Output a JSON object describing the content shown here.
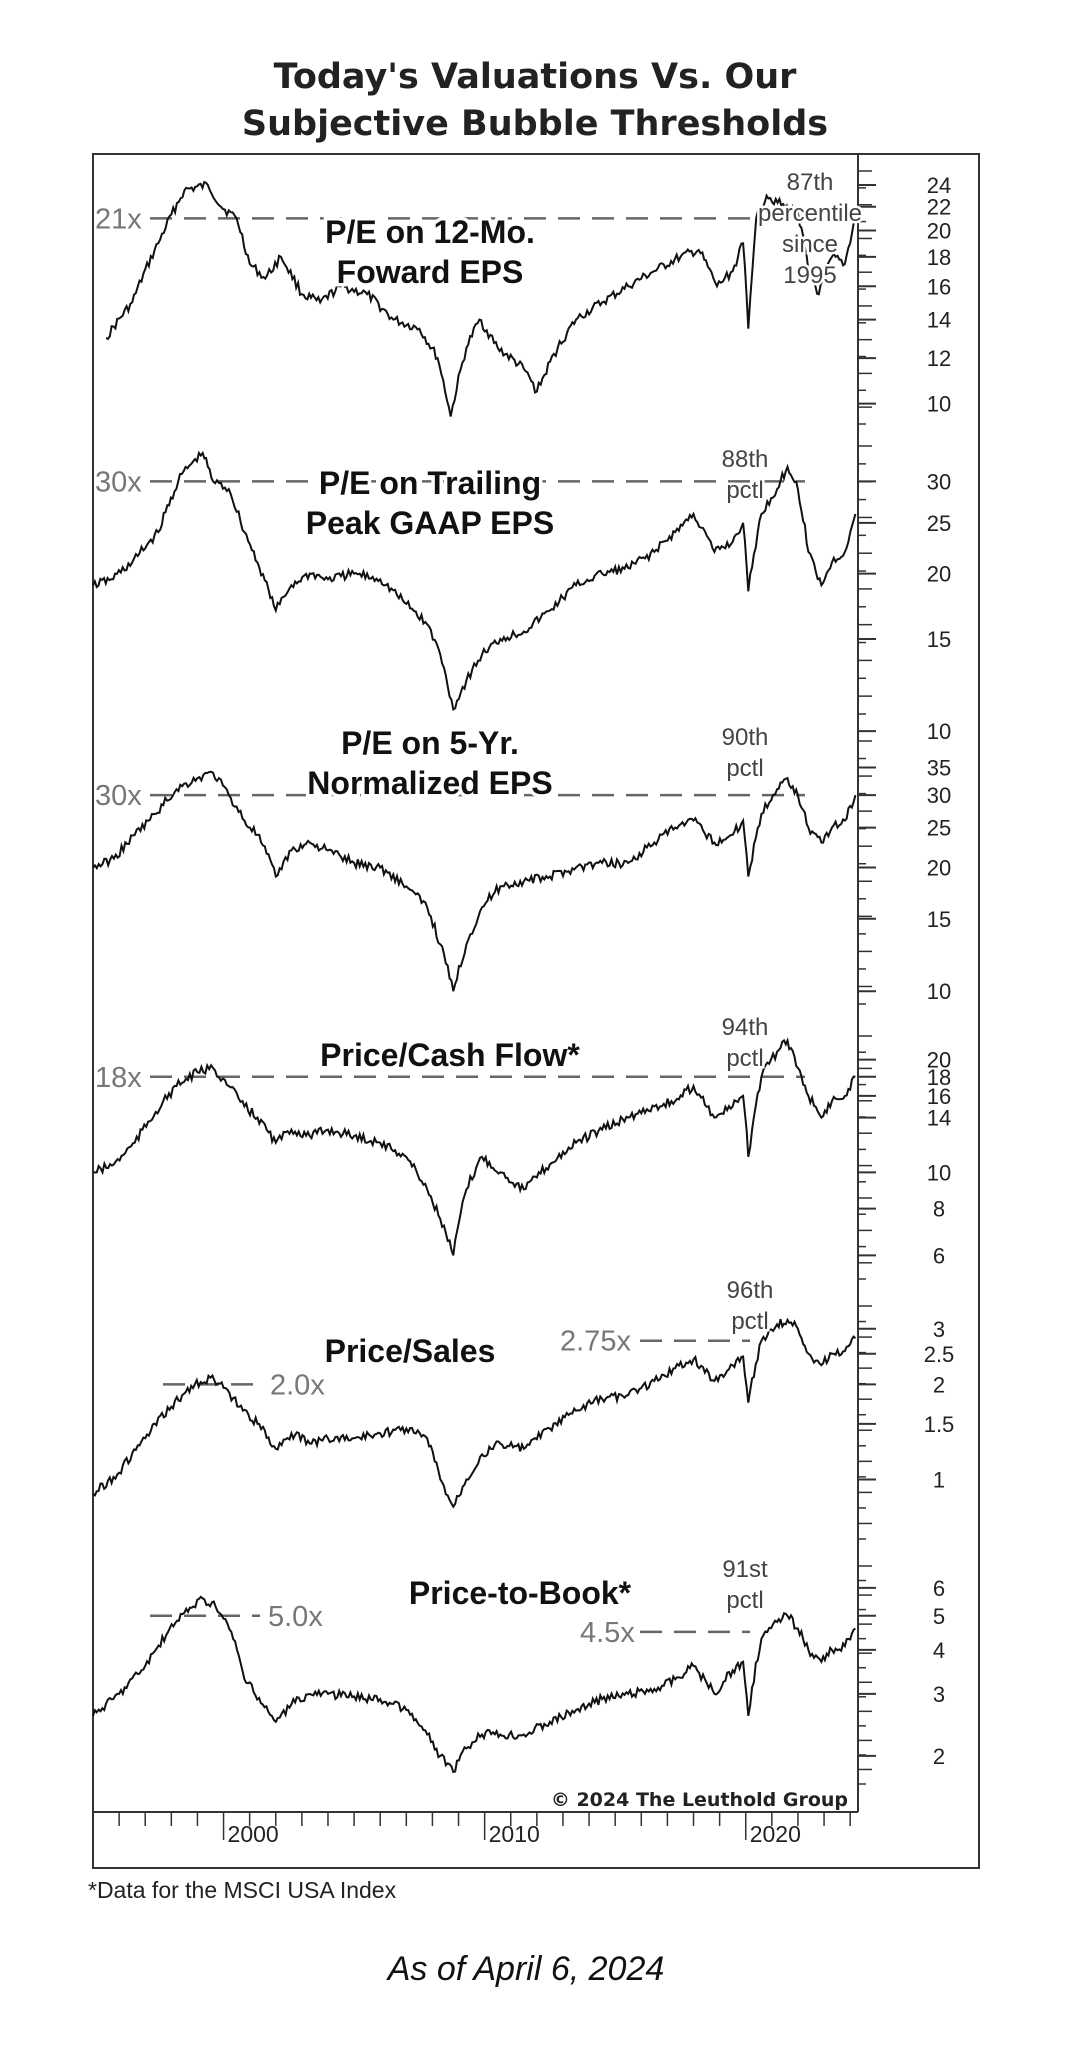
{
  "caption": "As of April 6, 2024",
  "chart_data": {
    "type": "line",
    "title": "Today's Valuations Vs. Our Subjective Bubble Thresholds",
    "title_lines": [
      "Today's Valuations Vs. Our",
      "Subjective Bubble Thresholds"
    ],
    "footnote": "*Data for the MSCI USA Index",
    "copyright": "© 2024 The Leuthold Group",
    "x_range": [
      1995,
      2024.3
    ],
    "x_tick_labels": [
      {
        "x": 2000,
        "label": "2000"
      },
      {
        "x": 2010,
        "label": "2010"
      },
      {
        "x": 2020,
        "label": "2020"
      }
    ],
    "line_color": "#111111",
    "threshold_color": "#666666",
    "panels": [
      {
        "label_lines": [
          "P/E on 12-Mo.",
          "Foward EPS"
        ],
        "threshold": 21,
        "threshold_label": "21x",
        "percentile_lines": [
          "87th",
          "percentile",
          "since",
          "1995"
        ],
        "scale": "log",
        "y_range": [
          9.0,
          26
        ],
        "y_ticks": [
          10,
          12,
          14,
          16,
          18,
          20,
          22,
          24
        ],
        "series": [
          [
            1995.5,
            13
          ],
          [
            1996.5,
            15
          ],
          [
            1997.5,
            19
          ],
          [
            1998.5,
            23.5
          ],
          [
            1999.4,
            24
          ],
          [
            1999.9,
            22
          ],
          [
            2000.5,
            21
          ],
          [
            2001.0,
            17.5
          ],
          [
            2001.6,
            16.5
          ],
          [
            2002.2,
            18
          ],
          [
            2003.0,
            15.5
          ],
          [
            2003.7,
            15
          ],
          [
            2004.5,
            16
          ],
          [
            2005.5,
            15.5
          ],
          [
            2006.5,
            14
          ],
          [
            2007.5,
            13.5
          ],
          [
            2008.2,
            12
          ],
          [
            2008.7,
            9.5
          ],
          [
            2009.3,
            12.5
          ],
          [
            2009.8,
            14
          ],
          [
            2010.5,
            12.5
          ],
          [
            2011.5,
            11.5
          ],
          [
            2012.0,
            10.5
          ],
          [
            2012.8,
            12.5
          ],
          [
            2013.5,
            14
          ],
          [
            2014.5,
            15
          ],
          [
            2015.5,
            16
          ],
          [
            2016.5,
            17
          ],
          [
            2017.5,
            18
          ],
          [
            2018.2,
            18.5
          ],
          [
            2018.9,
            16
          ],
          [
            2019.5,
            17
          ],
          [
            2019.9,
            19
          ],
          [
            2020.1,
            13.5
          ],
          [
            2020.4,
            21
          ],
          [
            2020.8,
            23
          ],
          [
            2021.5,
            22
          ],
          [
            2022.0,
            21.5
          ],
          [
            2022.4,
            17
          ],
          [
            2022.8,
            15.5
          ],
          [
            2023.3,
            18
          ],
          [
            2023.8,
            17.5
          ],
          [
            2024.2,
            21
          ]
        ]
      },
      {
        "label_lines": [
          "P/E on Trailing",
          "Peak GAAP EPS"
        ],
        "threshold": 30,
        "threshold_label": "30x",
        "percentile_lines": [
          "88th",
          "pctl"
        ],
        "scale": "log",
        "y_range": [
          10.5,
          36
        ],
        "y_ticks": [
          10,
          15,
          20,
          25,
          30
        ],
        "series": [
          [
            1995.0,
            19
          ],
          [
            1995.7,
            19.5
          ],
          [
            1996.5,
            21
          ],
          [
            1997.5,
            24
          ],
          [
            1998.4,
            31
          ],
          [
            1999.2,
            34
          ],
          [
            1999.6,
            30
          ],
          [
            2000.2,
            29
          ],
          [
            2000.8,
            24
          ],
          [
            2001.3,
            21
          ],
          [
            2002.0,
            17
          ],
          [
            2002.6,
            19
          ],
          [
            2003.3,
            20
          ],
          [
            2004.0,
            19.5
          ],
          [
            2005.0,
            20
          ],
          [
            2006.0,
            19.5
          ],
          [
            2007.0,
            17.5
          ],
          [
            2007.8,
            16
          ],
          [
            2008.3,
            14
          ],
          [
            2008.8,
            11
          ],
          [
            2009.3,
            12.5
          ],
          [
            2009.9,
            14
          ],
          [
            2010.6,
            15
          ],
          [
            2011.5,
            15.5
          ],
          [
            2012.5,
            17
          ],
          [
            2013.5,
            19
          ],
          [
            2014.5,
            20
          ],
          [
            2015.5,
            20.5
          ],
          [
            2016.5,
            22
          ],
          [
            2017.3,
            24
          ],
          [
            2018.0,
            26
          ],
          [
            2018.8,
            22
          ],
          [
            2019.5,
            23
          ],
          [
            2019.9,
            25
          ],
          [
            2020.1,
            18.5
          ],
          [
            2020.6,
            26
          ],
          [
            2021.2,
            29
          ],
          [
            2021.6,
            32
          ],
          [
            2022.0,
            29
          ],
          [
            2022.4,
            22
          ],
          [
            2022.9,
            19
          ],
          [
            2023.3,
            21
          ],
          [
            2023.8,
            22
          ],
          [
            2024.2,
            26
          ]
        ]
      },
      {
        "label_lines": [
          "P/E on 5-Yr.",
          "Normalized EPS"
        ],
        "threshold": 30,
        "threshold_label": "30x",
        "percentile_lines": [
          "90th",
          "pctl"
        ],
        "scale": "log",
        "y_range": [
          9.0,
          42
        ],
        "y_ticks": [
          10,
          15,
          20,
          25,
          30,
          35
        ],
        "series": [
          [
            1995.0,
            20
          ],
          [
            1995.8,
            21
          ],
          [
            1996.6,
            24
          ],
          [
            1997.4,
            27
          ],
          [
            1998.2,
            31
          ],
          [
            1999.0,
            33
          ],
          [
            1999.6,
            34
          ],
          [
            2000.2,
            30
          ],
          [
            2000.8,
            26
          ],
          [
            2001.3,
            24
          ],
          [
            2002.0,
            19
          ],
          [
            2002.6,
            22
          ],
          [
            2003.3,
            23
          ],
          [
            2004.0,
            22
          ],
          [
            2005.0,
            20.5
          ],
          [
            2006.0,
            20
          ],
          [
            2007.0,
            18
          ],
          [
            2007.8,
            16
          ],
          [
            2008.3,
            13
          ],
          [
            2008.8,
            10
          ],
          [
            2009.3,
            13
          ],
          [
            2009.9,
            16
          ],
          [
            2010.6,
            18
          ],
          [
            2011.5,
            18.5
          ],
          [
            2012.5,
            19
          ],
          [
            2013.5,
            20
          ],
          [
            2014.5,
            20.5
          ],
          [
            2015.5,
            20.5
          ],
          [
            2016.5,
            23
          ],
          [
            2017.3,
            25
          ],
          [
            2018.0,
            26
          ],
          [
            2018.8,
            23
          ],
          [
            2019.5,
            24
          ],
          [
            2019.9,
            26
          ],
          [
            2020.1,
            19
          ],
          [
            2020.6,
            27
          ],
          [
            2021.2,
            31
          ],
          [
            2021.6,
            33
          ],
          [
            2022.0,
            30
          ],
          [
            2022.4,
            25
          ],
          [
            2022.9,
            23
          ],
          [
            2023.3,
            25
          ],
          [
            2023.8,
            26
          ],
          [
            2024.2,
            30
          ]
        ]
      },
      {
        "label_lines": [
          "Price/Cash Flow*"
        ],
        "threshold": 18,
        "threshold_label": "18x",
        "percentile_lines": [
          "94th",
          "pctl"
        ],
        "scale": "log",
        "y_range": [
          5.0,
          24
        ],
        "y_ticks": [
          6,
          8,
          10,
          14,
          16,
          18,
          20
        ],
        "series": [
          [
            1995.0,
            10
          ],
          [
            1995.8,
            10.5
          ],
          [
            1996.6,
            12
          ],
          [
            1997.4,
            14.5
          ],
          [
            1998.2,
            17
          ],
          [
            1999.0,
            18.5
          ],
          [
            1999.6,
            19
          ],
          [
            2000.2,
            17
          ],
          [
            2000.8,
            15
          ],
          [
            2001.3,
            14
          ],
          [
            2002.0,
            12
          ],
          [
            2002.6,
            13
          ],
          [
            2003.3,
            12.5
          ],
          [
            2004.0,
            13
          ],
          [
            2005.0,
            12.5
          ],
          [
            2006.0,
            12
          ],
          [
            2007.0,
            11
          ],
          [
            2007.8,
            9
          ],
          [
            2008.3,
            7.5
          ],
          [
            2008.8,
            6
          ],
          [
            2009.3,
            9
          ],
          [
            2009.9,
            11
          ],
          [
            2010.6,
            10
          ],
          [
            2011.5,
            9
          ],
          [
            2012.5,
            10.5
          ],
          [
            2013.5,
            12
          ],
          [
            2014.5,
            13
          ],
          [
            2015.5,
            14
          ],
          [
            2016.5,
            15
          ],
          [
            2017.3,
            15.5
          ],
          [
            2018.0,
            17
          ],
          [
            2018.8,
            14
          ],
          [
            2019.5,
            15
          ],
          [
            2019.9,
            16
          ],
          [
            2020.1,
            11
          ],
          [
            2020.6,
            18
          ],
          [
            2021.2,
            21
          ],
          [
            2021.6,
            22.5
          ],
          [
            2022.0,
            19
          ],
          [
            2022.4,
            16
          ],
          [
            2022.9,
            14
          ],
          [
            2023.3,
            15.5
          ],
          [
            2023.8,
            16
          ],
          [
            2024.2,
            18
          ]
        ]
      },
      {
        "label_lines": [
          "Price/Sales"
        ],
        "threshold": 2.75,
        "threshold_label": "2.75x",
        "threshold2": 2.0,
        "threshold2_label": "2.0x",
        "percentile_lines": [
          "96th",
          "pctl"
        ],
        "scale": "log",
        "y_range": [
          0.62,
          3.7
        ],
        "y_ticks": [
          1.0,
          1.5,
          2.0,
          2.5,
          3.0
        ],
        "series": [
          [
            1995.0,
            0.9
          ],
          [
            1996.0,
            1.05
          ],
          [
            1997.0,
            1.35
          ],
          [
            1998.0,
            1.7
          ],
          [
            1998.9,
            2.0
          ],
          [
            1999.5,
            2.1
          ],
          [
            2000.0,
            1.95
          ],
          [
            2000.6,
            1.7
          ],
          [
            2001.3,
            1.5
          ],
          [
            2002.0,
            1.25
          ],
          [
            2002.6,
            1.4
          ],
          [
            2003.3,
            1.3
          ],
          [
            2004.0,
            1.35
          ],
          [
            2005.0,
            1.35
          ],
          [
            2006.0,
            1.4
          ],
          [
            2007.0,
            1.45
          ],
          [
            2007.8,
            1.35
          ],
          [
            2008.3,
            1.0
          ],
          [
            2008.8,
            0.82
          ],
          [
            2009.3,
            1.0
          ],
          [
            2009.9,
            1.2
          ],
          [
            2010.6,
            1.3
          ],
          [
            2011.5,
            1.25
          ],
          [
            2012.5,
            1.45
          ],
          [
            2013.5,
            1.65
          ],
          [
            2014.5,
            1.8
          ],
          [
            2015.5,
            1.85
          ],
          [
            2016.5,
            2.05
          ],
          [
            2017.3,
            2.25
          ],
          [
            2018.0,
            2.4
          ],
          [
            2018.8,
            2.05
          ],
          [
            2019.5,
            2.3
          ],
          [
            2019.9,
            2.45
          ],
          [
            2020.1,
            1.75
          ],
          [
            2020.6,
            2.75
          ],
          [
            2021.2,
            3.1
          ],
          [
            2021.6,
            3.2
          ],
          [
            2022.0,
            3.0
          ],
          [
            2022.4,
            2.5
          ],
          [
            2022.9,
            2.3
          ],
          [
            2023.3,
            2.5
          ],
          [
            2023.8,
            2.55
          ],
          [
            2024.2,
            2.8
          ]
        ]
      },
      {
        "label_lines": [
          "Price-to-Book*"
        ],
        "threshold": 4.5,
        "threshold_label": "4.5x",
        "threshold2": 5.0,
        "threshold2_label": "5.0x",
        "percentile_lines": [
          "91st",
          "pctl"
        ],
        "scale": "log",
        "y_range": [
          1.6,
          7.2
        ],
        "y_ticks": [
          2,
          3,
          4,
          5,
          6
        ],
        "series": [
          [
            1995.0,
            2.6
          ],
          [
            1996.0,
            3.0
          ],
          [
            1997.0,
            3.6
          ],
          [
            1997.8,
            4.4
          ],
          [
            1998.5,
            5.1
          ],
          [
            1999.2,
            5.6
          ],
          [
            1999.7,
            5.3
          ],
          [
            2000.3,
            4.5
          ],
          [
            2000.8,
            3.3
          ],
          [
            2001.5,
            2.8
          ],
          [
            2002.0,
            2.5
          ],
          [
            2002.6,
            2.8
          ],
          [
            2003.3,
            3.0
          ],
          [
            2004.0,
            3.0
          ],
          [
            2005.0,
            2.95
          ],
          [
            2006.0,
            2.9
          ],
          [
            2007.0,
            2.7
          ],
          [
            2007.8,
            2.3
          ],
          [
            2008.3,
            2.0
          ],
          [
            2008.8,
            1.8
          ],
          [
            2009.3,
            2.1
          ],
          [
            2009.9,
            2.3
          ],
          [
            2010.6,
            2.3
          ],
          [
            2011.5,
            2.3
          ],
          [
            2012.5,
            2.5
          ],
          [
            2013.5,
            2.7
          ],
          [
            2014.5,
            2.9
          ],
          [
            2015.5,
            3.0
          ],
          [
            2016.5,
            3.1
          ],
          [
            2017.3,
            3.3
          ],
          [
            2018.0,
            3.6
          ],
          [
            2018.8,
            3.0
          ],
          [
            2019.5,
            3.5
          ],
          [
            2019.9,
            3.7
          ],
          [
            2020.1,
            2.6
          ],
          [
            2020.6,
            4.3
          ],
          [
            2021.2,
            4.8
          ],
          [
            2021.6,
            5.0
          ],
          [
            2022.0,
            4.6
          ],
          [
            2022.4,
            4.0
          ],
          [
            2022.9,
            3.7
          ],
          [
            2023.3,
            4.0
          ],
          [
            2023.8,
            4.1
          ],
          [
            2024.2,
            4.6
          ]
        ]
      }
    ]
  }
}
